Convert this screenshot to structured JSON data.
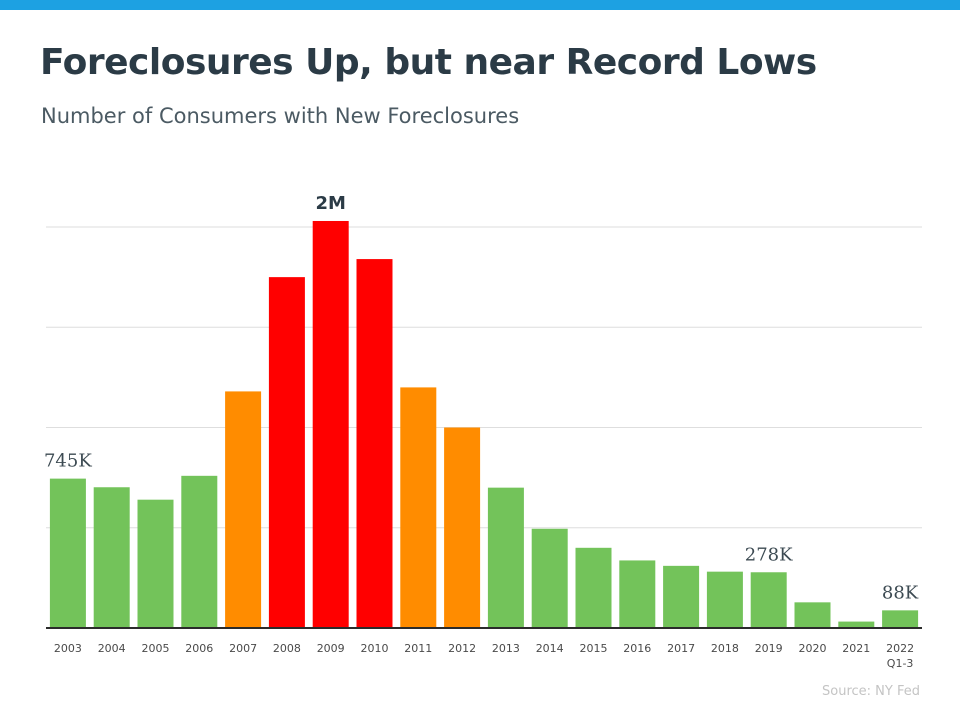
{
  "header": {
    "accent_color": "#1da1e2",
    "title": "Foreclosures Up, but near Record Lows",
    "subtitle": "Number of Consumers with New Foreclosures"
  },
  "footer": {
    "source": "Source: NY Fed"
  },
  "chart_data": {
    "type": "bar",
    "title": "Foreclosures Up, but near Record Lows",
    "subtitle": "Number of Consumers with New Foreclosures",
    "xlabel": "",
    "ylabel": "",
    "ylim": [
      0,
      2000000
    ],
    "grid": true,
    "legend": "none",
    "categories": [
      "2003",
      "2004",
      "2005",
      "2006",
      "2007",
      "2008",
      "2009",
      "2010",
      "2011",
      "2012",
      "2013",
      "2014",
      "2015",
      "2016",
      "2017",
      "2018",
      "2019",
      "2020",
      "2021",
      "2022"
    ],
    "category_sublabels": {
      "2022": "Q1-3"
    },
    "values": [
      745000,
      702000,
      640000,
      759000,
      1180000,
      1750000,
      2030000,
      1840000,
      1200000,
      1000000,
      700000,
      495000,
      400000,
      337000,
      310000,
      281000,
      278000,
      128000,
      32000,
      88000
    ],
    "bar_colors": [
      "#73c35a",
      "#73c35a",
      "#73c35a",
      "#73c35a",
      "#ff8c00",
      "#ff0000",
      "#ff0000",
      "#ff0000",
      "#ff8c00",
      "#ff8c00",
      "#73c35a",
      "#73c35a",
      "#73c35a",
      "#73c35a",
      "#73c35a",
      "#73c35a",
      "#73c35a",
      "#73c35a",
      "#73c35a",
      "#73c35a"
    ],
    "data_labels": [
      {
        "category": "2003",
        "text": "745K"
      },
      {
        "category": "2009",
        "text": "2M"
      },
      {
        "category": "2019",
        "text": "278K"
      },
      {
        "category": "2022",
        "text": "88K"
      }
    ]
  }
}
